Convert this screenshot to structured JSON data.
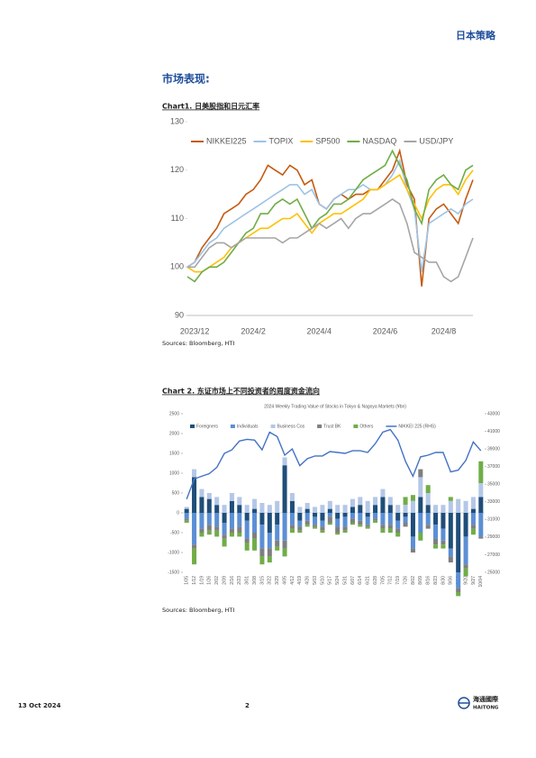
{
  "header": {
    "title": "日本策略"
  },
  "section_title": "市场表现:",
  "chart_data": [
    {
      "type": "line",
      "caption": "Chart1. 日美股指和日元汇率",
      "source": "Sources: Bloomberg, HTI",
      "categories": [
        null,
        "2023/12",
        null,
        null,
        null,
        null,
        null,
        null,
        null,
        "2024/2",
        null,
        null,
        null,
        null,
        null,
        null,
        null,
        null,
        "2024/4",
        null,
        null,
        null,
        null,
        null,
        null,
        null,
        null,
        "2024/6",
        null,
        null,
        null,
        null,
        null,
        null,
        null,
        "2024/8",
        null,
        null,
        null,
        null
      ],
      "ylim": [
        90,
        130
      ],
      "yticks": [
        90,
        100,
        110,
        120,
        130
      ],
      "grid": false,
      "legend": "top",
      "series": [
        {
          "name": "NIKKEI225",
          "color": "#c55a11",
          "values": [
            100,
            101,
            104,
            106,
            108,
            111,
            112,
            113,
            115,
            116,
            118,
            121,
            120,
            119,
            121,
            120,
            117,
            118,
            113,
            112,
            114,
            115,
            114,
            115,
            115,
            116,
            116,
            118,
            120,
            124,
            117,
            114,
            96,
            110,
            112,
            113,
            111,
            109,
            114,
            118
          ]
        },
        {
          "name": "TOPIX",
          "color": "#9dc3e6",
          "values": [
            100,
            101,
            103,
            105,
            106,
            108,
            109,
            110,
            111,
            112,
            113,
            114,
            115,
            116,
            117,
            117,
            115,
            116,
            113,
            112,
            114,
            115,
            116,
            116,
            117,
            116,
            116,
            117,
            119,
            122,
            116,
            112,
            99,
            109,
            110,
            111,
            112,
            111,
            113,
            114
          ]
        },
        {
          "name": "SP500",
          "color": "#ffc000",
          "values": [
            100,
            99,
            99,
            100,
            101,
            102,
            104,
            105,
            106,
            107,
            108,
            108,
            109,
            110,
            110,
            111,
            109,
            107,
            109,
            110,
            111,
            111,
            112,
            113,
            114,
            116,
            116,
            117,
            118,
            119,
            116,
            113,
            110,
            114,
            116,
            117,
            117,
            115,
            118,
            120
          ]
        },
        {
          "name": "NASDAQ",
          "color": "#70ad47",
          "values": [
            98,
            97,
            99,
            100,
            100,
            101,
            103,
            105,
            107,
            108,
            111,
            111,
            113,
            114,
            113,
            114,
            111,
            108,
            110,
            111,
            113,
            113,
            114,
            116,
            118,
            119,
            120,
            121,
            124,
            121,
            118,
            112,
            109,
            116,
            118,
            119,
            117,
            116,
            120,
            121
          ]
        },
        {
          "name": "USD/JPY",
          "color": "#a5a5a5",
          "values": [
            100,
            100,
            102,
            104,
            105,
            105,
            104,
            105,
            106,
            106,
            106,
            106,
            106,
            105,
            106,
            106,
            107,
            108,
            109,
            108,
            109,
            110,
            108,
            110,
            111,
            111,
            112,
            113,
            114,
            113,
            109,
            103,
            102,
            101,
            101,
            98,
            97,
            98,
            102,
            106
          ]
        }
      ]
    },
    {
      "type": "bar",
      "stacked": true,
      "caption": "Chart 2. 东证市场上不同投资者的周度资金流向",
      "title": "2024 Weekly Trading Value of Stocks in Tokyo & Nagoya Markets (¥bn)",
      "source": "Sources: Bloomberg, HTI",
      "categories": [
        "1/05",
        "1/12",
        "1/19",
        "1/26",
        "2/02",
        "2/09",
        "2/16",
        "2/23",
        "3/01",
        "3/08",
        "3/15",
        "3/22",
        "3/29",
        "4/05",
        "4/12",
        "4/19",
        "4/26",
        "5/03",
        "5/10",
        "5/17",
        "5/24",
        "5/31",
        "6/07",
        "6/14",
        "6/21",
        "6/28",
        "7/05",
        "7/12",
        "7/19",
        "7/26",
        "8/02",
        "8/09",
        "8/16",
        "8/23",
        "8/30",
        "9/06",
        "9/13",
        "9/20",
        "9/27",
        "10/04"
      ],
      "ylim": [
        -1500,
        2500
      ],
      "yticks": [
        -1500,
        -1000,
        -500,
        0,
        500,
        1000,
        1500,
        2000,
        2500
      ],
      "y2lim": [
        25000,
        43000
      ],
      "y2ticks": [
        25000,
        27000,
        29000,
        31000,
        33000,
        35000,
        37000,
        39000,
        41000,
        43000
      ],
      "grid": false,
      "legend": "top",
      "series": [
        {
          "name": "Foreigners",
          "color": "#1f4e79",
          "values": [
            100,
            900,
            400,
            350,
            200,
            -250,
            300,
            200,
            -200,
            100,
            -300,
            -500,
            -300,
            1200,
            300,
            -200,
            100,
            -100,
            -200,
            100,
            -150,
            -100,
            150,
            200,
            -100,
            200,
            400,
            200,
            -200,
            -100,
            -600,
            400,
            200,
            -300,
            -400,
            -900,
            -1500,
            -600,
            100,
            400
          ]
        },
        {
          "name": "Individuals",
          "color": "#5b8fd4",
          "values": [
            -150,
            -800,
            -400,
            -300,
            -350,
            -300,
            -400,
            -350,
            -450,
            -500,
            -600,
            -400,
            -400,
            -700,
            -300,
            -150,
            -200,
            -200,
            -150,
            -100,
            -200,
            -250,
            -150,
            -200,
            -200,
            -150,
            -300,
            -300,
            -200,
            -150,
            -300,
            -500,
            -300,
            -350,
            -300,
            -200,
            -400,
            -700,
            -300,
            -600
          ]
        },
        {
          "name": "Business Cos",
          "color": "#b4c7e7",
          "values": [
            50,
            200,
            200,
            150,
            200,
            200,
            200,
            200,
            200,
            250,
            250,
            200,
            300,
            200,
            200,
            150,
            150,
            150,
            200,
            200,
            200,
            200,
            200,
            200,
            300,
            200,
            200,
            200,
            200,
            200,
            300,
            500,
            300,
            200,
            200,
            300,
            350,
            300,
            300,
            350
          ]
        },
        {
          "name": "Trust BK",
          "color": "#7f7f7f",
          "values": [
            -50,
            -100,
            -100,
            -150,
            -100,
            -100,
            -100,
            -150,
            -100,
            -150,
            -200,
            -200,
            -150,
            -200,
            -100,
            -100,
            -100,
            -50,
            -100,
            -150,
            -150,
            -100,
            -100,
            -100,
            -50,
            -50,
            -100,
            -100,
            -100,
            -100,
            -100,
            200,
            -100,
            -150,
            -100,
            -150,
            -100,
            -100,
            -100,
            -50
          ]
        },
        {
          "name": "Others",
          "color": "#70ad47",
          "values": [
            -50,
            -400,
            -100,
            -100,
            -150,
            -200,
            -100,
            -100,
            -200,
            -300,
            -200,
            -150,
            -100,
            -200,
            -100,
            -50,
            -50,
            -50,
            -50,
            -50,
            -50,
            -50,
            -50,
            -50,
            -50,
            -50,
            -100,
            -100,
            -100,
            200,
            150,
            -200,
            200,
            -100,
            -100,
            100,
            -100,
            -200,
            -150,
            550
          ]
        },
        {
          "name": "NIKKEI 225 (RHS)",
          "color": "#4472c4",
          "type": "line",
          "axis": "y2",
          "values": [
            33300,
            35600,
            35900,
            36200,
            36900,
            38500,
            38900,
            39900,
            40100,
            40000,
            38900,
            40900,
            40400,
            38300,
            39000,
            37100,
            37900,
            38200,
            38200,
            38700,
            38600,
            38500,
            38800,
            38800,
            38600,
            39600,
            40900,
            41200,
            40000,
            37600,
            35900,
            38100,
            38300,
            38600,
            38600,
            36400,
            36600,
            37700,
            39800,
            38800
          ]
        }
      ]
    }
  ],
  "footer": {
    "date": "13 Oct 2024",
    "page": "2",
    "logo": "海通國際",
    "logo_sub": "HAITONG"
  }
}
